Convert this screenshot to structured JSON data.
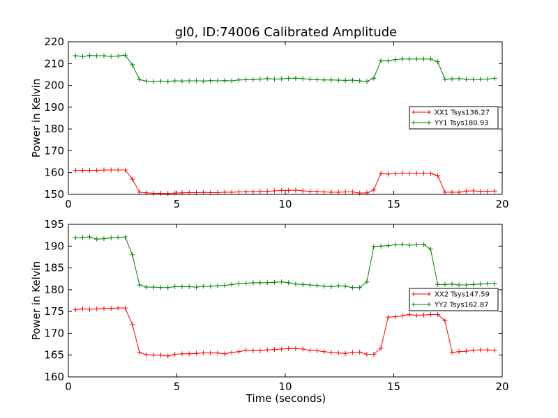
{
  "chart_data": [
    {
      "type": "line",
      "title": "gl0, ID:74006 Calibrated Amplitude",
      "xlabel": "",
      "ylabel": "Power in Kelvin",
      "xlim": [
        0,
        20
      ],
      "ylim": [
        150,
        220
      ],
      "xticks": [
        "0",
        "5",
        "10",
        "15",
        "20"
      ],
      "yticks": [
        "150",
        "160",
        "170",
        "180",
        "190",
        "200",
        "210",
        "220"
      ],
      "legend_position": "center-right",
      "x": [
        0.33,
        0.66,
        0.98,
        1.31,
        1.64,
        1.97,
        2.29,
        2.62,
        2.95,
        3.28,
        3.6,
        3.93,
        4.26,
        4.59,
        4.91,
        5.24,
        5.57,
        5.9,
        6.22,
        6.55,
        6.88,
        7.21,
        7.53,
        7.86,
        8.19,
        8.52,
        8.84,
        9.17,
        9.5,
        9.83,
        10.15,
        10.48,
        10.81,
        11.14,
        11.46,
        11.79,
        12.12,
        12.45,
        12.77,
        13.1,
        13.43,
        13.76,
        14.08,
        14.41,
        14.74,
        15.07,
        15.39,
        15.72,
        16.05,
        16.38,
        16.7,
        17.03,
        17.36,
        17.69,
        18.01,
        18.34,
        18.67,
        19.0,
        19.32,
        19.65
      ],
      "series": [
        {
          "name": "XX1 Tsys136.27",
          "color": "#ff0000",
          "values": [
            161,
            161,
            161,
            161,
            161.2,
            161.2,
            161.2,
            161.2,
            157,
            151,
            150.7,
            150.5,
            150.5,
            150.4,
            150.6,
            150.7,
            150.8,
            150.8,
            150.9,
            150.8,
            150.8,
            151,
            151,
            151.1,
            151.2,
            151.2,
            151.3,
            151.4,
            151.6,
            151.8,
            151.8,
            151.9,
            151.6,
            151.4,
            151.3,
            151.1,
            151,
            151,
            151.1,
            151.1,
            150.6,
            150.7,
            152,
            159.7,
            159.3,
            159.5,
            159.8,
            159.6,
            159.7,
            159.7,
            159.6,
            158.6,
            151,
            151,
            151,
            151.5,
            151.6,
            151.4,
            151.4,
            151.5
          ]
        },
        {
          "name": "YY1 Tsys180.93",
          "color": "#008000",
          "values": [
            213.6,
            213.3,
            213.7,
            213.6,
            213.6,
            213.3,
            213.5,
            213.9,
            209.5,
            202.6,
            202,
            201.8,
            202,
            201.7,
            202.1,
            202,
            202.1,
            202.1,
            202,
            202.2,
            202.1,
            202.2,
            202.1,
            202.5,
            202.6,
            202.6,
            202.9,
            203.1,
            202.9,
            203,
            203.2,
            203.3,
            203.1,
            202.8,
            202.6,
            202.5,
            202.5,
            202.4,
            202.3,
            202.4,
            202.1,
            201.8,
            203.3,
            211.4,
            211.3,
            211.8,
            212.1,
            212.1,
            212.1,
            212.1,
            212.1,
            210.8,
            202.8,
            203,
            203.1,
            202.8,
            202.7,
            202.8,
            202.9,
            203.2
          ]
        }
      ]
    },
    {
      "type": "line",
      "title": "",
      "xlabel": "Time (seconds)",
      "ylabel": "Power in Kelvin",
      "xlim": [
        0,
        20
      ],
      "ylim": [
        160,
        195
      ],
      "xticks": [
        "0",
        "5",
        "10",
        "15",
        "20"
      ],
      "yticks": [
        "160",
        "165",
        "170",
        "175",
        "180",
        "185",
        "190",
        "195"
      ],
      "legend_position": "center-right",
      "x": [
        0.33,
        0.66,
        0.98,
        1.31,
        1.64,
        1.97,
        2.29,
        2.62,
        2.95,
        3.28,
        3.6,
        3.93,
        4.26,
        4.59,
        4.91,
        5.24,
        5.57,
        5.9,
        6.22,
        6.55,
        6.88,
        7.21,
        7.53,
        7.86,
        8.19,
        8.52,
        8.84,
        9.17,
        9.5,
        9.83,
        10.15,
        10.48,
        10.81,
        11.14,
        11.46,
        11.79,
        12.12,
        12.45,
        12.77,
        13.1,
        13.43,
        13.76,
        14.08,
        14.41,
        14.74,
        15.07,
        15.39,
        15.72,
        16.05,
        16.38,
        16.7,
        17.03,
        17.36,
        17.69,
        18.01,
        18.34,
        18.67,
        19.0,
        19.32,
        19.65
      ],
      "series": [
        {
          "name": "XX2 Tsys147.59",
          "color": "#ff0000",
          "values": [
            175.4,
            175.6,
            175.5,
            175.6,
            175.7,
            175.7,
            175.8,
            175.8,
            172,
            165.6,
            165.1,
            165,
            165,
            164.8,
            165.2,
            165.3,
            165.3,
            165.4,
            165.5,
            165.5,
            165.5,
            165.3,
            165.6,
            165.8,
            166.1,
            166,
            166,
            166.2,
            166.3,
            166.4,
            166.5,
            166.5,
            166.4,
            166.1,
            166,
            165.8,
            165.6,
            165.5,
            165.4,
            165.6,
            165.7,
            165.2,
            165.2,
            166.6,
            173.7,
            173.8,
            174,
            174.3,
            174.1,
            174.2,
            174.3,
            174.3,
            172.9,
            165.6,
            165.8,
            165.9,
            166.1,
            166.2,
            166.2,
            166.1
          ]
        },
        {
          "name": "YY2 Tsys162.87",
          "color": "#008000",
          "values": [
            191.9,
            192,
            192.1,
            191.6,
            191.7,
            191.9,
            192,
            192.1,
            188,
            181.1,
            180.6,
            180.6,
            180.5,
            180.5,
            180.7,
            180.7,
            180.7,
            180.6,
            180.8,
            180.8,
            180.9,
            181,
            181.2,
            181.4,
            181.5,
            181.6,
            181.6,
            181.6,
            181.7,
            181.8,
            181.6,
            181.3,
            181.2,
            181.1,
            181,
            180.8,
            180.7,
            180.9,
            180.8,
            180.5,
            180.5,
            181.8,
            189.9,
            190,
            190.1,
            190.3,
            190.4,
            190.2,
            190.3,
            190.4,
            189.3,
            181.2,
            181.2,
            181.3,
            181.1,
            181.1,
            181.2,
            181.3,
            181.4,
            181.4
          ]
        }
      ]
    }
  ]
}
